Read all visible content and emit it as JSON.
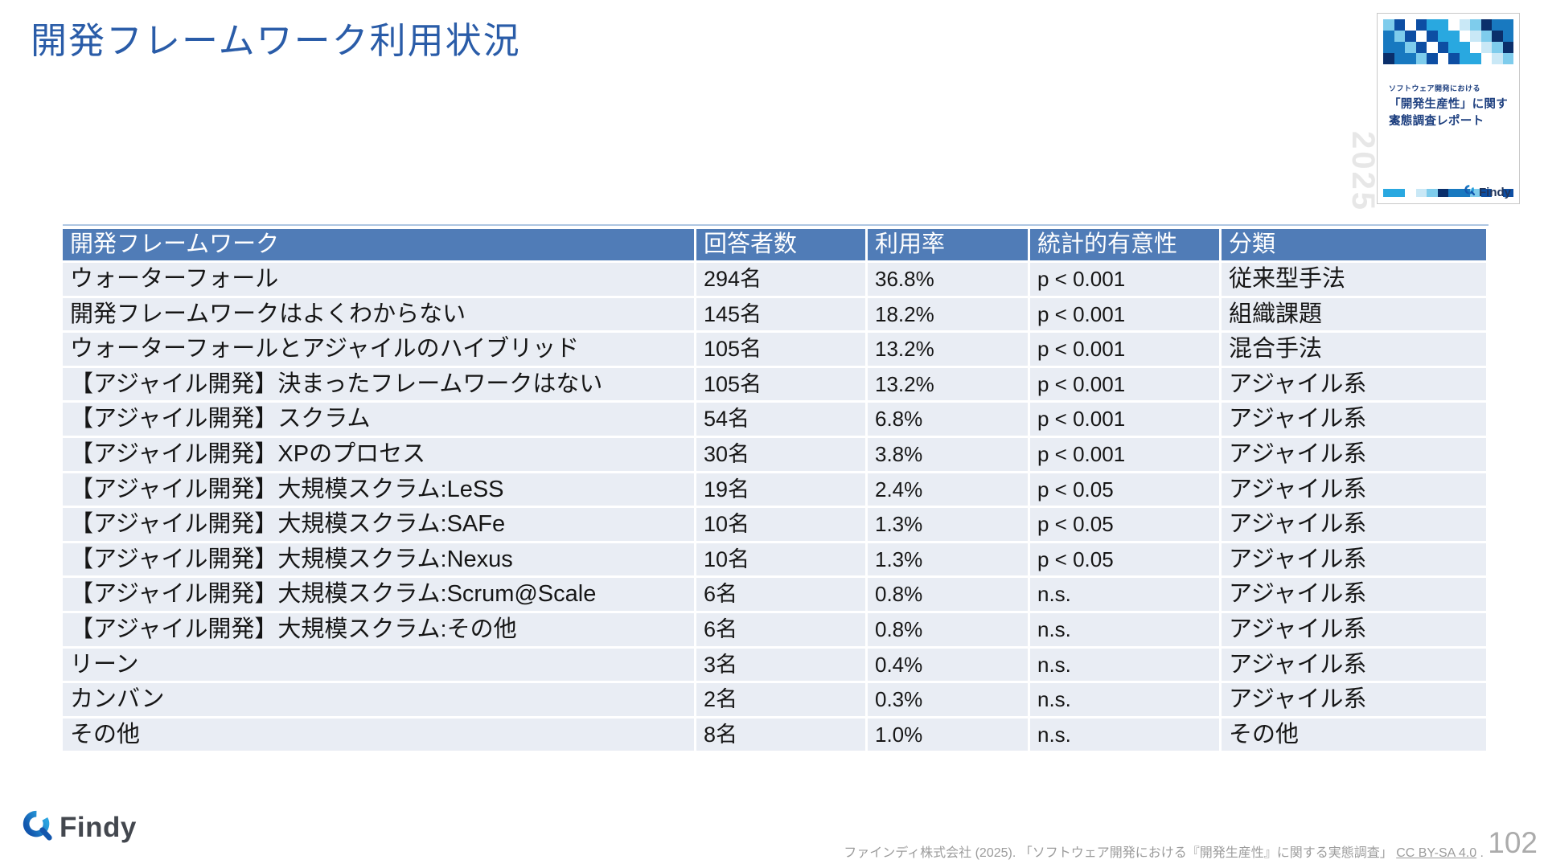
{
  "title": "開発フレームワーク利用状況",
  "table": {
    "headers": [
      "開発フレームワーク",
      "回答者数",
      "利用率",
      "統計的有意性",
      "分類"
    ],
    "rows": [
      [
        "ウォーターフォール",
        "294名",
        "36.8%",
        "p < 0.001",
        "従来型手法"
      ],
      [
        "開発フレームワークはよくわからない",
        "145名",
        "18.2%",
        "p < 0.001",
        "組織課題"
      ],
      [
        "ウォーターフォールとアジャイルのハイブリッド",
        "105名",
        "13.2%",
        "p < 0.001",
        "混合手法"
      ],
      [
        "【アジャイル開発】決まったフレームワークはない",
        "105名",
        "13.2%",
        "p < 0.001",
        "アジャイル系"
      ],
      [
        "【アジャイル開発】スクラム",
        "54名",
        "6.8%",
        "p < 0.001",
        "アジャイル系"
      ],
      [
        "【アジャイル開発】XPのプロセス",
        "30名",
        "3.8%",
        "p < 0.001",
        "アジャイル系"
      ],
      [
        "【アジャイル開発】大規模スクラム:LeSS",
        "19名",
        "2.4%",
        "p < 0.05",
        "アジャイル系"
      ],
      [
        "【アジャイル開発】大規模スクラム:SAFe",
        "10名",
        "1.3%",
        "p < 0.05",
        "アジャイル系"
      ],
      [
        "【アジャイル開発】大規模スクラム:Nexus",
        "10名",
        "1.3%",
        "p < 0.05",
        "アジャイル系"
      ],
      [
        "【アジャイル開発】大規模スクラム:Scrum@Scale",
        "6名",
        "0.8%",
        "n.s.",
        "アジャイル系"
      ],
      [
        "【アジャイル開発】大規模スクラム:その他",
        "6名",
        "0.8%",
        "n.s.",
        "アジャイル系"
      ],
      [
        "リーン",
        "3名",
        "0.4%",
        "n.s.",
        "アジャイル系"
      ],
      [
        "カンバン",
        "2名",
        "0.3%",
        "n.s.",
        "アジャイル系"
      ],
      [
        "その他",
        "8名",
        "1.0%",
        "n.s.",
        "その他"
      ]
    ]
  },
  "cover_card": {
    "eyebrow": "ソフトウェア開発における",
    "title_line1": "「開発生産性」に関する",
    "title_line2": "実態調査レポート",
    "watermark": "2025",
    "logo_text": "Findy",
    "mosaic_palette": [
      "#0d4ea3",
      "#1879c0",
      "#29a8e0",
      "#7eccec",
      "#c9e8f6",
      "#ffffff",
      "#0a2f6b",
      "#29a8e0",
      "#1879c0",
      "#ffffff",
      "#0d4ea3",
      "#7eccec"
    ]
  },
  "footer": {
    "logo_text": "Findy",
    "citation_main": "ファインディ株式会社 (2025). 「ソフトウェア開発における『開発生産性』に関する実態調査」",
    "citation_license": "CC BY-SA 4.0",
    "citation_period": ".",
    "page_number": "102"
  },
  "colors": {
    "title_text": "#2a5ca8",
    "table_header_bg": "#507cb7",
    "table_row_bg": "#e9edf4",
    "table_topline": "#aec6e2",
    "card_navy": "#1d3f7f",
    "footer_text": "#9c9c9c",
    "page_number": "#ababab"
  }
}
